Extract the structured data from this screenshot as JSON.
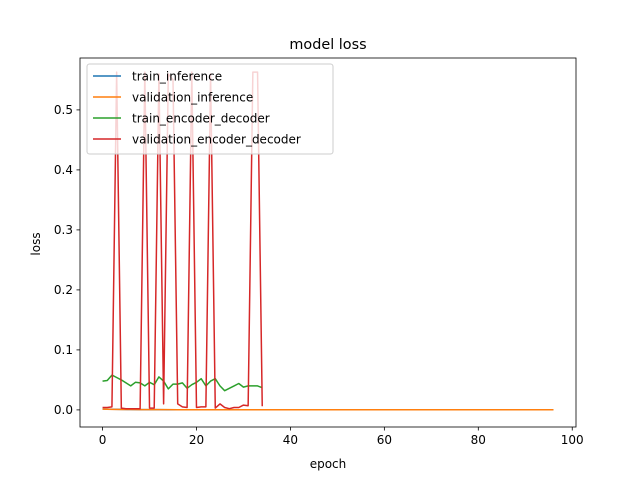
{
  "chart_data": {
    "type": "line",
    "title": "model loss",
    "xlabel": "epoch",
    "ylabel": "loss",
    "xlim": [
      -4.8,
      100.8
    ],
    "ylim": [
      -0.0285,
      0.5865
    ],
    "xticks": [
      0,
      20,
      40,
      60,
      80,
      100
    ],
    "yticks": [
      0.0,
      0.1,
      0.2,
      0.3,
      0.4,
      0.5
    ],
    "ytick_labels": [
      "0.0",
      "0.1",
      "0.2",
      "0.3",
      "0.4",
      "0.5"
    ],
    "grid": false,
    "legend": {
      "position": "upper-left"
    },
    "series": [
      {
        "name": "train_inference",
        "color": "#1f77b4",
        "x": [
          0,
          2,
          4,
          6,
          8,
          10,
          12,
          14,
          16,
          18,
          20,
          22,
          24,
          26,
          28,
          30,
          32,
          34,
          36,
          38,
          40,
          42,
          44,
          46,
          48,
          50,
          52,
          54,
          56,
          58,
          60,
          62,
          64,
          66,
          68,
          70,
          72,
          74,
          76,
          78,
          80,
          82,
          84,
          86,
          88,
          90,
          92,
          94,
          96
        ],
        "y": [
          0.0015,
          0.001,
          0.0008,
          0.0006,
          0.0005,
          0.0004,
          0.0004,
          0.0003,
          0.0003,
          0.0003,
          0.0003,
          0.0002,
          0.0002,
          0.0002,
          0.0002,
          0.0002,
          0.0002,
          0.0002,
          0.0002,
          0.0002,
          0.0002,
          0.0002,
          0.0002,
          0.0002,
          0.0002,
          0.0002,
          0.0002,
          0.0002,
          0.0002,
          0.0002,
          0.0002,
          0.0002,
          0.0002,
          0.0002,
          0.0002,
          0.0002,
          0.0002,
          0.0002,
          0.0002,
          0.0002,
          0.0002,
          0.0002,
          0.0002,
          0.0002,
          0.0002,
          0.0002,
          0.0002,
          0.0002,
          0.0002
        ]
      },
      {
        "name": "validation_inference",
        "color": "#ff7f0e",
        "x": [
          0,
          2,
          4,
          6,
          8,
          10,
          12,
          14,
          16,
          18,
          20,
          22,
          24,
          26,
          28,
          30,
          32,
          34,
          36,
          38,
          40,
          42,
          44,
          46,
          48,
          50,
          52,
          54,
          56,
          58,
          60,
          62,
          64,
          66,
          68,
          70,
          72,
          74,
          76,
          78,
          80,
          82,
          84,
          86,
          88,
          90,
          92,
          94,
          96
        ],
        "y": [
          0.0012,
          0.0009,
          0.0007,
          0.0006,
          0.0005,
          0.0004,
          0.0004,
          0.0004,
          0.0003,
          0.0003,
          0.0003,
          0.0003,
          0.0003,
          0.0003,
          0.0003,
          0.0003,
          0.0003,
          0.0003,
          0.0003,
          0.0003,
          0.0003,
          0.0003,
          0.0003,
          0.0003,
          0.0003,
          0.0003,
          0.0003,
          0.0003,
          0.0003,
          0.0003,
          0.0003,
          0.0003,
          0.0003,
          0.0003,
          0.0003,
          0.0003,
          0.0003,
          0.0003,
          0.0003,
          0.0003,
          0.0003,
          0.0003,
          0.0003,
          0.0003,
          0.0003,
          0.0003,
          0.0003,
          0.0003,
          0.0003
        ]
      },
      {
        "name": "train_encoder_decoder",
        "color": "#2ca02c",
        "x": [
          0,
          1,
          2,
          3,
          4,
          5,
          6,
          7,
          8,
          9,
          10,
          11,
          12,
          13,
          14,
          15,
          16,
          17,
          18,
          19,
          20,
          21,
          22,
          23,
          24,
          25,
          26,
          27,
          28,
          29,
          30,
          31,
          32,
          33,
          34
        ],
        "y": [
          0.048,
          0.049,
          0.058,
          0.054,
          0.05,
          0.045,
          0.04,
          0.046,
          0.045,
          0.04,
          0.046,
          0.042,
          0.055,
          0.048,
          0.035,
          0.043,
          0.043,
          0.045,
          0.036,
          0.042,
          0.046,
          0.052,
          0.04,
          0.048,
          0.052,
          0.04,
          0.032,
          0.036,
          0.04,
          0.044,
          0.038,
          0.04,
          0.04,
          0.04,
          0.037
        ]
      },
      {
        "name": "validation_encoder_decoder",
        "color": "#d62728",
        "x": [
          0,
          1,
          2,
          3,
          4,
          5,
          6,
          7,
          8,
          9,
          10,
          11,
          12,
          13,
          14,
          15,
          16,
          17,
          18,
          19,
          20,
          21,
          22,
          23,
          24,
          25,
          26,
          27,
          28,
          29,
          30,
          31,
          32,
          33,
          34
        ],
        "y": [
          0.004,
          0.004,
          0.005,
          0.563,
          0.003,
          0.002,
          0.002,
          0.002,
          0.002,
          0.563,
          0.003,
          0.003,
          0.56,
          0.01,
          0.56,
          0.55,
          0.01,
          0.005,
          0.004,
          0.563,
          0.004,
          0.005,
          0.005,
          0.56,
          0.003,
          0.01,
          0.004,
          0.002,
          0.004,
          0.004,
          0.008,
          0.007,
          0.563,
          0.563,
          0.006
        ]
      }
    ]
  }
}
